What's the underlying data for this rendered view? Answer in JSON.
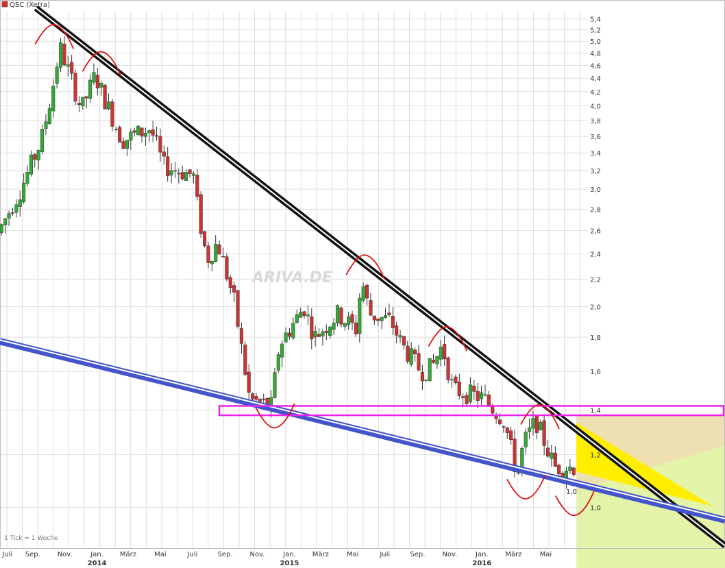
{
  "colors": {
    "up": "#33aa33",
    "down": "#cc3333",
    "resistance_line": "#111111",
    "support_line": "#4455cc",
    "support_zone": "#ee22ee",
    "marks": "#dd1111",
    "triangle": "#ffee00",
    "zone_upper": "#efe0b2",
    "zone_lower": "#e4f4a8",
    "grid": "#dddddd"
  },
  "chart_data": {
    "type": "candlestick",
    "title": "QSC (Xetra)",
    "legend": [
      {
        "name": "QSC (Xetra)",
        "color": "#cc3333"
      }
    ],
    "footer": "1 Tick = 1 Woche",
    "watermark": "ARIVA.DE",
    "yscale": "log",
    "ylim": [
      0.92,
      5.55
    ],
    "xlim": [
      "2013-07-01",
      "2016-07-20"
    ],
    "grid": true,
    "y_ticks": [
      {
        "v": 5.4,
        "label": "5,4"
      },
      {
        "v": 5.2,
        "label": "5,2"
      },
      {
        "v": 5.0,
        "label": "5,0"
      },
      {
        "v": 4.8,
        "label": "4,8"
      },
      {
        "v": 4.6,
        "label": "4,6"
      },
      {
        "v": 4.4,
        "label": "4,4"
      },
      {
        "v": 4.2,
        "label": "4,2"
      },
      {
        "v": 4.0,
        "label": "4,0"
      },
      {
        "v": 3.8,
        "label": "3,8"
      },
      {
        "v": 3.6,
        "label": "3,6"
      },
      {
        "v": 3.4,
        "label": "3,4"
      },
      {
        "v": 3.2,
        "label": "3,2"
      },
      {
        "v": 3.0,
        "label": "3,0"
      },
      {
        "v": 2.8,
        "label": "2,8"
      },
      {
        "v": 2.6,
        "label": "2,6"
      },
      {
        "v": 2.4,
        "label": "2,4"
      },
      {
        "v": 2.2,
        "label": "2,2"
      },
      {
        "v": 2.0,
        "label": "2,0"
      },
      {
        "v": 1.8,
        "label": "1,8"
      },
      {
        "v": 1.6,
        "label": "1,6"
      },
      {
        "v": 1.4,
        "label": "1,4"
      },
      {
        "v": 1.2,
        "label": "1,2"
      },
      {
        "v": 1.0,
        "label": "1,0"
      }
    ],
    "x_ticks": [
      {
        "date": "2013-07-15",
        "label": "Juli"
      },
      {
        "date": "2013-09-01",
        "label": "Sep."
      },
      {
        "date": "2013-11-01",
        "label": "Nov."
      },
      {
        "date": "2014-01-01",
        "label": "Jan.",
        "year": "2014"
      },
      {
        "date": "2014-03-01",
        "label": "März"
      },
      {
        "date": "2014-05-01",
        "label": "Mai"
      },
      {
        "date": "2014-07-01",
        "label": "Juli"
      },
      {
        "date": "2014-09-01",
        "label": "Sep."
      },
      {
        "date": "2014-11-01",
        "label": "Nov."
      },
      {
        "date": "2015-01-01",
        "label": "Jan.",
        "year": "2015"
      },
      {
        "date": "2015-03-01",
        "label": "März"
      },
      {
        "date": "2015-05-01",
        "label": "Mai"
      },
      {
        "date": "2015-07-01",
        "label": "Juli"
      },
      {
        "date": "2015-09-01",
        "label": "Sep."
      },
      {
        "date": "2015-11-01",
        "label": "Nov."
      },
      {
        "date": "2016-01-01",
        "label": "Jan.",
        "year": "2016"
      },
      {
        "date": "2016-03-01",
        "label": "März"
      },
      {
        "date": "2016-05-01",
        "label": "Mai"
      }
    ],
    "anchors": [
      {
        "date": "2013-07-01",
        "price": 2.55
      },
      {
        "date": "2013-08-15",
        "price": 2.98
      },
      {
        "date": "2013-09-25",
        "price": 3.55
      },
      {
        "date": "2013-10-15",
        "price": 4.2
      },
      {
        "date": "2013-10-30",
        "price": 4.9
      },
      {
        "date": "2013-11-20",
        "price": 4.4
      },
      {
        "date": "2013-12-10",
        "price": 3.95
      },
      {
        "date": "2014-01-05",
        "price": 4.45
      },
      {
        "date": "2014-01-20",
        "price": 4.15
      },
      {
        "date": "2014-02-25",
        "price": 3.55
      },
      {
        "date": "2014-04-20",
        "price": 3.7
      },
      {
        "date": "2014-05-15",
        "price": 3.25
      },
      {
        "date": "2014-07-10",
        "price": 3.15
      },
      {
        "date": "2014-07-20",
        "price": 2.75
      },
      {
        "date": "2014-08-05",
        "price": 2.35
      },
      {
        "date": "2014-08-25",
        "price": 2.5
      },
      {
        "date": "2014-09-25",
        "price": 2.05
      },
      {
        "date": "2014-10-25",
        "price": 1.45
      },
      {
        "date": "2014-12-05",
        "price": 1.42
      },
      {
        "date": "2014-12-20",
        "price": 1.75
      },
      {
        "date": "2015-02-05",
        "price": 2.0
      },
      {
        "date": "2015-02-25",
        "price": 1.8
      },
      {
        "date": "2015-04-10",
        "price": 1.95
      },
      {
        "date": "2015-05-15",
        "price": 1.85
      },
      {
        "date": "2015-05-25",
        "price": 2.2
      },
      {
        "date": "2015-06-10",
        "price": 1.95
      },
      {
        "date": "2015-07-20",
        "price": 1.9
      },
      {
        "date": "2015-08-10",
        "price": 1.75
      },
      {
        "date": "2015-09-15",
        "price": 1.6
      },
      {
        "date": "2015-10-05",
        "price": 1.62
      },
      {
        "date": "2015-10-25",
        "price": 1.75
      },
      {
        "date": "2015-11-15",
        "price": 1.5
      },
      {
        "date": "2016-01-10",
        "price": 1.46
      },
      {
        "date": "2016-02-20",
        "price": 1.35
      },
      {
        "date": "2016-03-15",
        "price": 1.12
      },
      {
        "date": "2016-03-28",
        "price": 1.25
      },
      {
        "date": "2016-04-20",
        "price": 1.35
      },
      {
        "date": "2016-05-25",
        "price": 1.15
      },
      {
        "date": "2016-06-20",
        "price": 1.15
      }
    ],
    "last_price_label": "1,0",
    "overlays": {
      "resistance_line": [
        {
          "date": "2013-09-15",
          "price": 5.5
        },
        {
          "date": "2016-07-20",
          "price": 1.3
        }
      ],
      "support_line": [
        {
          "date": "2013-07-01",
          "price": 1.8
        },
        {
          "date": "2016-07-20",
          "price": 1.1
        }
      ],
      "support_zone": [
        1.375,
        1.42
      ],
      "triangle_start": "2016-06-28"
    }
  }
}
